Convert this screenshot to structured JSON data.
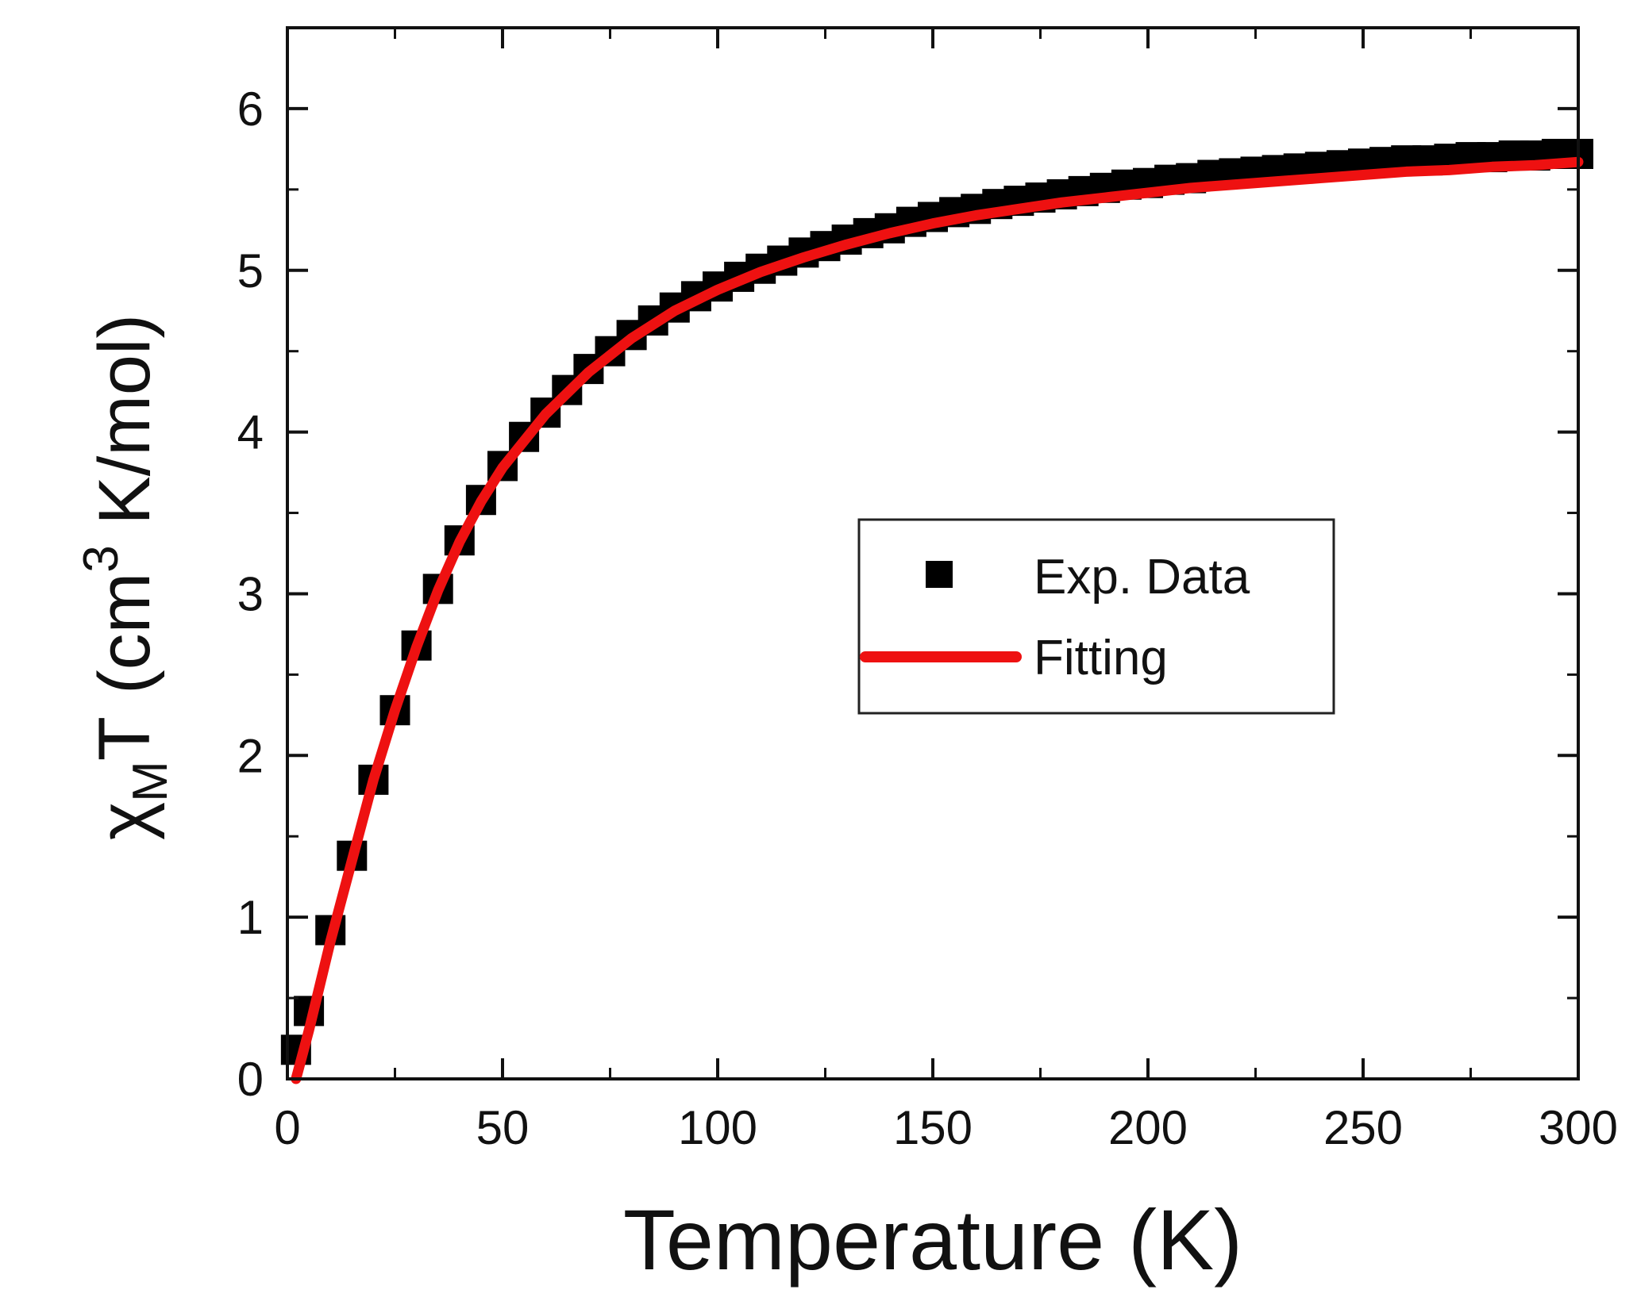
{
  "chart_data": {
    "type": "scatter",
    "title": "",
    "xlabel": "Temperature (K)",
    "ylabel": {
      "symbol": "χ",
      "subscript": "M",
      "after_subscript": "T",
      "units_open": "(cm",
      "superscript": "3",
      "units_close": " K/mol)"
    },
    "xlim": [
      0,
      300
    ],
    "ylim": [
      0,
      6.5
    ],
    "xticks": [
      0,
      50,
      100,
      150,
      200,
      250,
      300
    ],
    "yticks": [
      0,
      1,
      2,
      3,
      4,
      5,
      6
    ],
    "grid": false,
    "legend_position": "center-right",
    "series": [
      {
        "name": "Exp. Data",
        "kind": "scatter",
        "marker": "square",
        "color": "#000000",
        "x": [
          2,
          5,
          10,
          15,
          20,
          25,
          30,
          35,
          40,
          45,
          50,
          55,
          60,
          65,
          70,
          75,
          80,
          85,
          90,
          95,
          100,
          105,
          110,
          115,
          120,
          125,
          130,
          135,
          140,
          145,
          150,
          155,
          160,
          165,
          170,
          175,
          180,
          185,
          190,
          195,
          200,
          205,
          210,
          215,
          220,
          225,
          230,
          235,
          240,
          245,
          250,
          255,
          260,
          265,
          270,
          275,
          280,
          285,
          290,
          295,
          300
        ],
        "y": [
          0.18,
          0.42,
          0.92,
          1.38,
          1.85,
          2.28,
          2.68,
          3.03,
          3.33,
          3.58,
          3.79,
          3.97,
          4.12,
          4.26,
          4.39,
          4.5,
          4.6,
          4.69,
          4.77,
          4.84,
          4.9,
          4.96,
          5.01,
          5.06,
          5.11,
          5.15,
          5.19,
          5.23,
          5.26,
          5.3,
          5.33,
          5.36,
          5.38,
          5.41,
          5.43,
          5.45,
          5.47,
          5.49,
          5.51,
          5.53,
          5.54,
          5.56,
          5.57,
          5.59,
          5.6,
          5.61,
          5.62,
          5.63,
          5.64,
          5.65,
          5.66,
          5.67,
          5.68,
          5.68,
          5.69,
          5.7,
          5.7,
          5.71,
          5.71,
          5.72,
          5.72
        ]
      },
      {
        "name": "Fitting",
        "kind": "line",
        "color": "#ee1111",
        "x": [
          2,
          5,
          10,
          15,
          20,
          25,
          30,
          35,
          40,
          45,
          50,
          60,
          70,
          80,
          90,
          100,
          110,
          120,
          130,
          140,
          150,
          160,
          170,
          180,
          190,
          200,
          210,
          220,
          230,
          240,
          250,
          260,
          270,
          280,
          290,
          300
        ],
        "y": [
          0.0,
          0.3,
          0.85,
          1.35,
          1.85,
          2.28,
          2.67,
          3.02,
          3.32,
          3.57,
          3.78,
          4.11,
          4.37,
          4.58,
          4.75,
          4.88,
          4.99,
          5.08,
          5.16,
          5.23,
          5.29,
          5.34,
          5.38,
          5.42,
          5.45,
          5.48,
          5.51,
          5.53,
          5.55,
          5.57,
          5.59,
          5.61,
          5.62,
          5.64,
          5.65,
          5.67
        ]
      }
    ]
  }
}
